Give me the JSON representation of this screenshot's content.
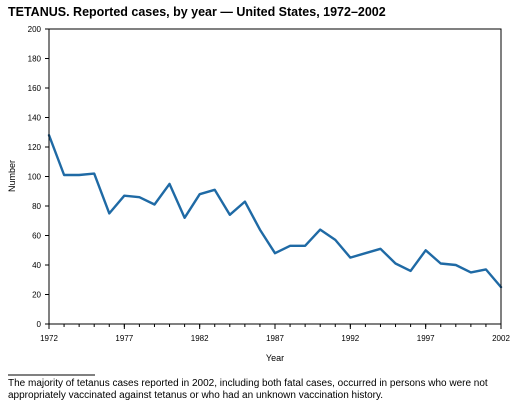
{
  "colors": {
    "line": "#1f6aa5",
    "axis": "#000000",
    "text": "#000000"
  },
  "chart_data": {
    "type": "line",
    "title_bold": "TETANUS.",
    "title_rest": " Reported cases, by year — United States, 1972–2002",
    "xlabel": "Year",
    "ylabel": "Number",
    "xlim": [
      1972,
      2002
    ],
    "ylim": [
      0,
      200
    ],
    "xticks": [
      1972,
      1977,
      1982,
      1987,
      1992,
      1997,
      2002
    ],
    "yticks": [
      0,
      20,
      40,
      60,
      80,
      100,
      120,
      140,
      160,
      180,
      200
    ],
    "grid": false,
    "legend": "none",
    "series": [
      {
        "x": [
          1972,
          1973,
          1974,
          1975,
          1976,
          1977,
          1978,
          1979,
          1980,
          1981,
          1982,
          1983,
          1984,
          1985,
          1986,
          1987,
          1988,
          1989,
          1990,
          1991,
          1992,
          1993,
          1994,
          1995,
          1996,
          1997,
          1998,
          1999,
          2000,
          2001,
          2002
        ],
        "values": [
          128,
          101,
          101,
          102,
          75,
          87,
          86,
          81,
          95,
          72,
          88,
          91,
          74,
          83,
          64,
          48,
          53,
          53,
          64,
          57,
          45,
          48,
          51,
          41,
          36,
          50,
          41,
          40,
          35,
          37,
          25
        ]
      }
    ]
  },
  "footnote": "The majority of tetanus cases reported in 2002, including both fatal cases, occurred in persons who were not appropriately vaccinated against tetanus or who had an unknown vaccination history."
}
